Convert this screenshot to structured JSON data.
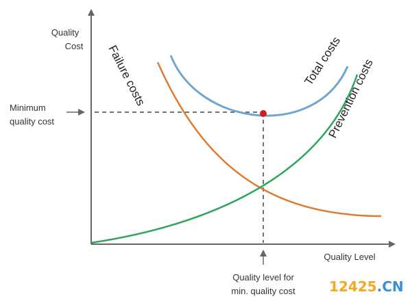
{
  "chart_data": {
    "type": "line",
    "xlabel": "Quality Level",
    "ylabel_lines": [
      "Quality",
      "Cost"
    ],
    "grid": false,
    "series": [
      {
        "name": "Total costs",
        "color": "#6fa5cf"
      },
      {
        "name": "Failure costs",
        "color": "#e07a2e"
      },
      {
        "name": "Prevention costs",
        "color": "#2ca65a"
      }
    ],
    "annotations": {
      "min_cost_label": [
        "Minimum",
        "quality cost"
      ],
      "optimum_level_label": [
        "Quality level for",
        "min. quality cost"
      ],
      "optimum_point_color": "#cc1f1f"
    }
  },
  "watermark": {
    "part1": "12425",
    "part2": ".CN"
  }
}
